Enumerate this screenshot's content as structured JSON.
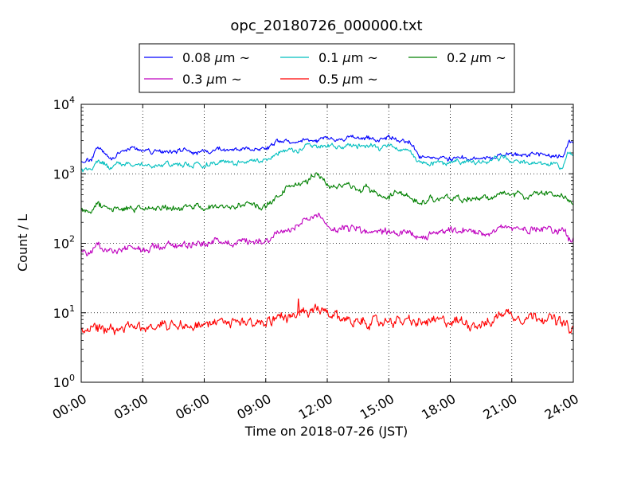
{
  "chart_data": {
    "type": "line",
    "title": "opc_20180726_000000.txt",
    "xlabel": "Time on 2018-07-26 (JST)",
    "ylabel": "Count / L",
    "x_unit": "hour of day (JST)",
    "xlim": [
      0,
      24
    ],
    "ylim": [
      1,
      10000
    ],
    "yscale": "log",
    "grid": true,
    "grid_style": "dotted",
    "legend_position": "top-center",
    "legend_columns": 3,
    "x_ticks": [
      "00:00",
      "03:00",
      "06:00",
      "09:00",
      "12:00",
      "15:00",
      "18:00",
      "21:00",
      "24:00"
    ],
    "y_ticks": [
      {
        "base": "10",
        "exp": "0"
      },
      {
        "base": "10",
        "exp": "1"
      },
      {
        "base": "10",
        "exp": "2"
      },
      {
        "base": "10",
        "exp": "3"
      },
      {
        "base": "10",
        "exp": "4"
      }
    ],
    "x": [
      0.0,
      0.5,
      0.75,
      1.0,
      1.5,
      2.0,
      2.5,
      3.0,
      3.5,
      4.0,
      4.5,
      5.0,
      5.5,
      6.0,
      6.5,
      7.0,
      7.5,
      8.0,
      8.5,
      9.0,
      9.5,
      10.0,
      10.5,
      11.0,
      11.5,
      12.0,
      12.5,
      13.0,
      13.5,
      14.0,
      14.5,
      15.0,
      15.5,
      16.0,
      16.5,
      17.0,
      17.5,
      18.0,
      18.5,
      19.0,
      19.5,
      20.0,
      20.5,
      21.0,
      21.5,
      22.0,
      22.5,
      23.0,
      23.5,
      23.75,
      24.0
    ],
    "series": [
      {
        "name": "0.08 μm ~",
        "legend": {
          "size": "0.08",
          "unit": "μm",
          "suffix": "~"
        },
        "color": "#0000ff",
        "noise": 0.045,
        "values": [
          1500,
          1600,
          2300,
          2200,
          1700,
          2200,
          2250,
          2200,
          2000,
          2100,
          2000,
          2200,
          2100,
          2100,
          2200,
          2300,
          2200,
          2300,
          2300,
          2400,
          2800,
          2900,
          2700,
          3100,
          3000,
          3200,
          3000,
          3400,
          3300,
          3200,
          3000,
          3400,
          2900,
          3000,
          1800,
          1700,
          1700,
          1650,
          1750,
          1700,
          1650,
          1700,
          2000,
          1900,
          1800,
          1900,
          1800,
          1800,
          1700,
          2800,
          2800
        ]
      },
      {
        "name": "0.1 μm ~",
        "legend": {
          "size": "0.1",
          "unit": "μm",
          "suffix": "~"
        },
        "color": "#00bfbf",
        "noise": 0.05,
        "values": [
          1100,
          1200,
          1700,
          1500,
          1200,
          1400,
          1450,
          1400,
          1300,
          1400,
          1300,
          1400,
          1300,
          1350,
          1400,
          1500,
          1400,
          1500,
          1500,
          1600,
          1900,
          2200,
          2100,
          2600,
          2400,
          2600,
          2400,
          2700,
          2500,
          2500,
          2300,
          2600,
          2200,
          2200,
          1400,
          1350,
          1400,
          1400,
          1500,
          1450,
          1400,
          1500,
          1700,
          1600,
          1500,
          1500,
          1400,
          1400,
          1300,
          1900,
          2000
        ]
      },
      {
        "name": "0.2 μm ~",
        "legend": {
          "size": "0.2",
          "unit": "μm",
          "suffix": "~"
        },
        "color": "#008000",
        "noise": 0.06,
        "values": [
          300,
          290,
          400,
          340,
          300,
          310,
          320,
          300,
          320,
          330,
          310,
          320,
          330,
          330,
          330,
          350,
          330,
          360,
          360,
          330,
          480,
          620,
          700,
          800,
          1050,
          700,
          650,
          700,
          600,
          600,
          500,
          450,
          550,
          500,
          360,
          430,
          460,
          440,
          440,
          440,
          440,
          450,
          520,
          500,
          480,
          500,
          520,
          480,
          500,
          440,
          400
        ]
      },
      {
        "name": "0.3 μm ~",
        "legend": {
          "size": "0.3",
          "unit": "μm",
          "suffix": "~"
        },
        "color": "#bf00bf",
        "noise": 0.07,
        "values": [
          75,
          75,
          95,
          80,
          78,
          80,
          85,
          80,
          90,
          95,
          90,
          100,
          100,
          100,
          105,
          110,
          100,
          110,
          110,
          110,
          140,
          150,
          170,
          210,
          250,
          170,
          160,
          175,
          160,
          145,
          140,
          150,
          140,
          140,
          110,
          130,
          140,
          150,
          145,
          150,
          140,
          150,
          175,
          160,
          155,
          165,
          170,
          160,
          150,
          120,
          110
        ]
      },
      {
        "name": "0.5 μm ~",
        "legend": {
          "size": "0.5",
          "unit": "μm",
          "suffix": "~"
        },
        "color": "#ff0000",
        "noise": 0.1,
        "values": [
          6.0,
          6.5,
          6.5,
          6.0,
          6.2,
          6.0,
          6.2,
          6.0,
          6.5,
          7.0,
          6.8,
          7.0,
          7.0,
          7.0,
          7.0,
          7.0,
          7.0,
          7.5,
          7.5,
          7.5,
          8.5,
          9.0,
          9.0,
          9.5,
          11.0,
          9.5,
          8.5,
          8.0,
          7.5,
          7.5,
          7.0,
          8.0,
          7.5,
          7.5,
          7.0,
          7.5,
          7.5,
          7.5,
          7.5,
          7.0,
          7.0,
          7.0,
          10.5,
          9.5,
          8.5,
          9.0,
          9.0,
          8.0,
          7.0,
          6.0,
          5.5
        ]
      }
    ],
    "annotations": [
      {
        "series": "0.5 μm ~",
        "x": 10.55,
        "y": 16,
        "note": "spike"
      }
    ]
  }
}
